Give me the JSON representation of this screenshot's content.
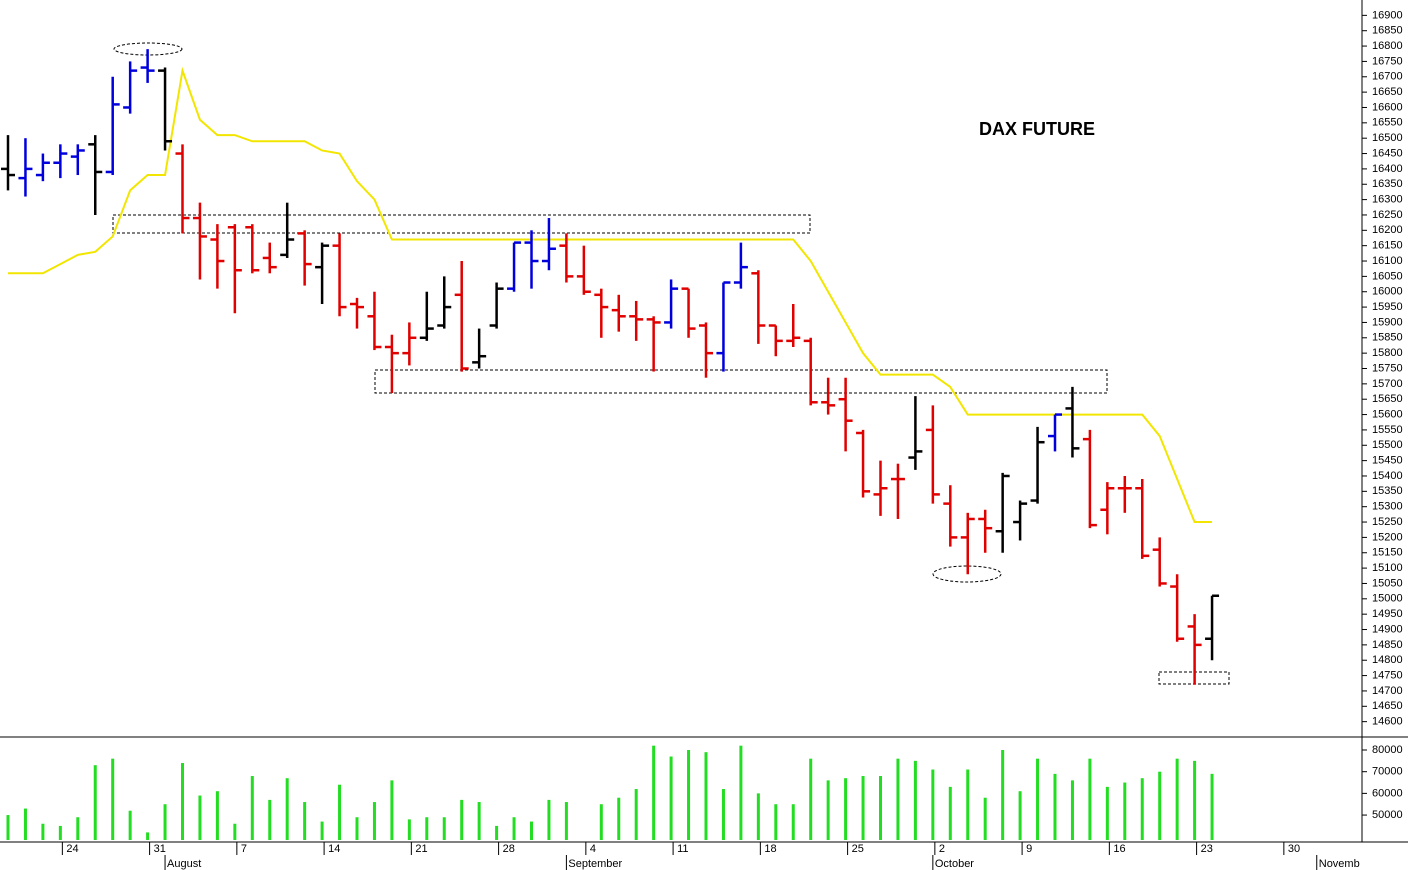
{
  "chart_data": [
    {
      "type": "ohlc",
      "title": "DAX FUTURE",
      "categories": [
        null,
        null,
        null,
        "24",
        null,
        null,
        null,
        null,
        "31",
        null,
        null,
        null,
        null,
        "7",
        null,
        null,
        null,
        null,
        "14",
        null,
        null,
        null,
        null,
        "21",
        null,
        null,
        null,
        null,
        "28",
        null,
        null,
        null,
        null,
        "4",
        null,
        null,
        null,
        null,
        "11",
        null,
        null,
        null,
        null,
        "18",
        null,
        null,
        null,
        null,
        "25",
        null,
        null,
        null,
        null,
        "2",
        null,
        null,
        null,
        null,
        "9",
        null,
        null,
        null,
        null,
        "16",
        null,
        null,
        null,
        null,
        "23",
        null,
        null,
        null,
        null,
        "30",
        null,
        null,
        null
      ],
      "months": [
        null,
        null,
        null,
        null,
        null,
        null,
        null,
        null,
        null,
        "August",
        null,
        null,
        null,
        null,
        null,
        null,
        null,
        null,
        null,
        null,
        null,
        null,
        null,
        null,
        null,
        null,
        null,
        null,
        null,
        null,
        null,
        null,
        "September",
        null,
        null,
        null,
        null,
        null,
        null,
        null,
        null,
        null,
        null,
        null,
        null,
        null,
        null,
        null,
        null,
        null,
        null,
        null,
        null,
        "October",
        null,
        null,
        null,
        null,
        null,
        null,
        null,
        null,
        null,
        null,
        null,
        null,
        null,
        null,
        null,
        null,
        null,
        null,
        null,
        null,
        null,
        "Novemb",
        null
      ],
      "open": [
        16400,
        16370,
        16380,
        16420,
        16440,
        16480,
        16390,
        16600,
        16730,
        16720,
        16450,
        16240,
        16170,
        16210,
        16210,
        16110,
        16120,
        16190,
        16080,
        16150,
        15960,
        15920,
        15820,
        15800,
        15850,
        15890,
        15990,
        15770,
        15890,
        16010,
        16160,
        16100,
        16150,
        16050,
        15990,
        15940,
        15920,
        15910,
        15900,
        16010,
        15890,
        15800,
        16030,
        16060,
        15890,
        15840,
        15840,
        15640,
        15650,
        15540,
        15340,
        15390,
        15460,
        15550,
        15310,
        15200,
        15260,
        15220,
        15250,
        15320,
        15530,
        15620,
        15520,
        15290,
        15360,
        15360,
        15160,
        15040,
        14910,
        14870,
        null,
        null,
        null,
        null,
        null,
        null,
        null
      ],
      "high": [
        16510,
        16500,
        16450,
        16480,
        16480,
        16510,
        16700,
        16750,
        16790,
        16730,
        16480,
        16290,
        16220,
        16220,
        16220,
        16160,
        16290,
        16200,
        16160,
        16190,
        15980,
        16000,
        15860,
        15900,
        16000,
        16050,
        16100,
        15880,
        16030,
        16160,
        16200,
        16240,
        16190,
        16150,
        16010,
        15990,
        15970,
        15920,
        16040,
        16010,
        15900,
        16030,
        16160,
        16070,
        15890,
        15960,
        15850,
        15720,
        15720,
        15550,
        15450,
        15440,
        15660,
        15630,
        15370,
        15280,
        15290,
        15410,
        15320,
        15560,
        15600,
        15690,
        15550,
        15380,
        15400,
        15390,
        15200,
        15080,
        14950,
        15010,
        null,
        null,
        null,
        null,
        null,
        null,
        null
      ],
      "low": [
        16330,
        16310,
        16360,
        16370,
        16380,
        16250,
        16380,
        16580,
        16680,
        16460,
        16190,
        16040,
        16010,
        15930,
        16060,
        16060,
        16110,
        16020,
        15960,
        15920,
        15880,
        15810,
        15670,
        15760,
        15840,
        15880,
        15740,
        15750,
        15880,
        16000,
        16010,
        16070,
        16030,
        15990,
        15850,
        15870,
        15840,
        15740,
        15880,
        15850,
        15720,
        15740,
        16010,
        15830,
        15790,
        15820,
        15630,
        15600,
        15480,
        15330,
        15270,
        15260,
        15420,
        15310,
        15170,
        15080,
        15150,
        15150,
        15190,
        15310,
        15480,
        15460,
        15230,
        15210,
        15280,
        15130,
        15040,
        14860,
        14720,
        14800,
        null,
        null,
        null,
        null,
        null,
        null,
        null
      ],
      "close": [
        16380,
        16400,
        16420,
        16450,
        16460,
        16390,
        16610,
        16720,
        16720,
        16490,
        16240,
        16180,
        16100,
        16070,
        16070,
        16080,
        16170,
        16090,
        16150,
        15950,
        15950,
        15820,
        15800,
        15850,
        15880,
        15950,
        15750,
        15790,
        16010,
        16160,
        16100,
        16140,
        16050,
        16000,
        15950,
        15920,
        15910,
        15900,
        16010,
        15880,
        15800,
        16030,
        16080,
        15890,
        15840,
        15850,
        15640,
        15630,
        15580,
        15350,
        15360,
        15390,
        15480,
        15340,
        15200,
        15260,
        15230,
        15400,
        15310,
        15510,
        15600,
        15490,
        15240,
        15360,
        15360,
        15140,
        15050,
        14870,
        14850,
        15010,
        null,
        null,
        null,
        null,
        null,
        null,
        null
      ],
      "colors": [
        "#000000",
        "#0000dd",
        "#0000dd",
        "#0000dd",
        "#0000dd",
        "#000000",
        "#0000dd",
        "#0000dd",
        "#0000dd",
        "#000000",
        "#e00000",
        "#e00000",
        "#e00000",
        "#e00000",
        "#e00000",
        "#e00000",
        "#000000",
        "#e00000",
        "#000000",
        "#e00000",
        "#e00000",
        "#e00000",
        "#e00000",
        "#e00000",
        "#000000",
        "#000000",
        "#e00000",
        "#000000",
        "#000000",
        "#0000dd",
        "#0000dd",
        "#0000dd",
        "#e00000",
        "#e00000",
        "#e00000",
        "#e00000",
        "#e00000",
        "#e00000",
        "#0000dd",
        "#e00000",
        "#e00000",
        "#0000dd",
        "#0000dd",
        "#e00000",
        "#e00000",
        "#e00000",
        "#e00000",
        "#e00000",
        "#e00000",
        "#e00000",
        "#e00000",
        "#e00000",
        "#000000",
        "#e00000",
        "#e00000",
        "#e00000",
        "#e00000",
        "#000000",
        "#000000",
        "#000000",
        "#0000dd",
        "#000000",
        "#e00000",
        "#e00000",
        "#e00000",
        "#e00000",
        "#e00000",
        "#e00000",
        "#e00000",
        "#000000",
        null,
        null,
        null,
        null,
        null,
        null,
        null
      ],
      "line": {
        "color": "#f2e600",
        "values": [
          16060,
          16060,
          16060,
          16090,
          16120,
          16130,
          16180,
          16330,
          16380,
          16380,
          16720,
          16560,
          16510,
          16510,
          16490,
          16490,
          16490,
          16490,
          16460,
          16450,
          16360,
          16300,
          16170,
          16170,
          16170,
          16170,
          16170,
          16170,
          16170,
          16170,
          16170,
          16170,
          16170,
          16170,
          16170,
          16170,
          16170,
          16170,
          16170,
          16170,
          16170,
          16170,
          16170,
          16170,
          16170,
          16170,
          16100,
          16000,
          15900,
          15800,
          15730,
          15730,
          15730,
          15730,
          15690,
          15600,
          15600,
          15600,
          15600,
          15600,
          15600,
          15600,
          15600,
          15600,
          15600,
          15600,
          15530,
          15390,
          15250,
          15250,
          null,
          null,
          null,
          null,
          null,
          null,
          null
        ]
      },
      "ylim": [
        14550,
        16950
      ],
      "yticks": [
        14600,
        14650,
        14700,
        14750,
        14800,
        14850,
        14900,
        14950,
        15000,
        15050,
        15100,
        15150,
        15200,
        15250,
        15300,
        15350,
        15400,
        15450,
        15500,
        15550,
        15600,
        15650,
        15700,
        15750,
        15800,
        15850,
        15900,
        15950,
        16000,
        16050,
        16100,
        16150,
        16200,
        16250,
        16300,
        16350,
        16400,
        16450,
        16500,
        16550,
        16600,
        16650,
        16700,
        16750,
        16800,
        16850,
        16900
      ]
    },
    {
      "type": "bar",
      "color": "#22dd22",
      "values": [
        50000,
        53000,
        46000,
        45000,
        49000,
        73000,
        76000,
        52000,
        42000,
        55000,
        74000,
        59000,
        61000,
        46000,
        68000,
        57000,
        67000,
        56000,
        47000,
        64000,
        49000,
        56000,
        66000,
        48000,
        49000,
        49000,
        57000,
        56000,
        45000,
        49000,
        47000,
        57000,
        56000,
        null,
        55000,
        58000,
        62000,
        82000,
        77000,
        80000,
        79000,
        62000,
        82000,
        60000,
        55000,
        55000,
        76000,
        66000,
        67000,
        68000,
        68000,
        76000,
        75000,
        71000,
        63000,
        71000,
        58000,
        80000,
        61000,
        76000,
        69000,
        66000,
        76000,
        63000,
        65000,
        67000,
        70000,
        76000,
        75000,
        69000,
        null,
        null,
        null,
        null,
        null,
        null,
        null
      ],
      "ylim": [
        38500,
        86000
      ],
      "yticks": [
        50000,
        60000,
        70000,
        80000
      ]
    }
  ]
}
